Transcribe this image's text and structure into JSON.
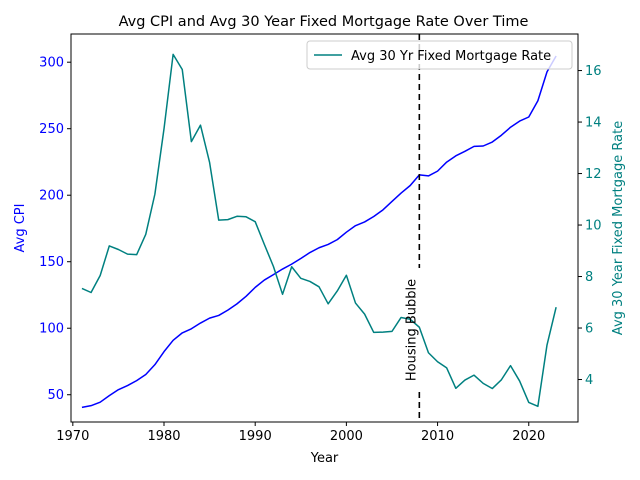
{
  "chart_data": {
    "type": "line",
    "title": "Avg CPI and Avg 30 Year Fixed Mortgage Rate Over Time",
    "xlabel": "Year",
    "ylabel_left": "Avg CPI",
    "ylabel_right": "Avg 30 Year Fixed Mortgage Rate",
    "xlim": [
      1969.8,
      2025.4
    ],
    "ylim_left": [
      29.5,
      321.2
    ],
    "ylim_right": [
      2.35,
      17.42
    ],
    "x_ticks": [
      1970,
      1980,
      1990,
      2000,
      2010,
      2020
    ],
    "y_ticks_left": [
      50,
      100,
      150,
      200,
      250,
      300
    ],
    "y_ticks_right": [
      4,
      6,
      8,
      10,
      12,
      14,
      16
    ],
    "grid": false,
    "legend": "top-right",
    "annotation": {
      "text": "Housing Bubble",
      "x": 2008
    },
    "colors": {
      "cpi": "#0000ff",
      "mortgage": "#008080",
      "annotation": "#000000"
    },
    "series": [
      {
        "axis": "left",
        "x": [
          1971,
          1972,
          1973,
          1974,
          1975,
          1976,
          1977,
          1978,
          1979,
          1980,
          1981,
          1982,
          1983,
          1984,
          1985,
          1986,
          1987,
          1988,
          1989,
          1990,
          1991,
          1992,
          1993,
          1994,
          1995,
          1996,
          1997,
          1998,
          1999,
          2000,
          2001,
          2002,
          2003,
          2004,
          2005,
          2006,
          2007,
          2008,
          2009,
          2010,
          2011,
          2012,
          2013,
          2014,
          2015,
          2016,
          2017,
          2018,
          2019,
          2020,
          2021,
          2022,
          2023
        ],
        "values": [
          40.5,
          41.8,
          44.4,
          49.3,
          53.8,
          56.9,
          60.6,
          65.2,
          72.6,
          82.4,
          90.9,
          96.5,
          99.6,
          103.9,
          107.6,
          109.6,
          113.6,
          118.3,
          124.0,
          130.7,
          136.2,
          140.3,
          144.5,
          148.2,
          152.4,
          156.9,
          160.5,
          163.0,
          166.6,
          172.2,
          177.1,
          179.9,
          184.0,
          188.9,
          195.3,
          201.6,
          207.3,
          215.3,
          214.5,
          218.1,
          224.9,
          229.6,
          233.0,
          236.7,
          237.0,
          240.0,
          245.1,
          251.1,
          255.7,
          258.8,
          271.0,
          292.7,
          304.7
        ]
      },
      {
        "name": "Avg 30 Yr Fixed Mortgage Rate",
        "axis": "right",
        "x": [
          1971,
          1972,
          1973,
          1974,
          1975,
          1976,
          1977,
          1978,
          1979,
          1980,
          1981,
          1982,
          1983,
          1984,
          1985,
          1986,
          1987,
          1988,
          1989,
          1990,
          1991,
          1992,
          1993,
          1994,
          1995,
          1996,
          1997,
          1998,
          1999,
          2000,
          2001,
          2002,
          2003,
          2004,
          2005,
          2006,
          2007,
          2008,
          2009,
          2010,
          2011,
          2012,
          2013,
          2014,
          2015,
          2016,
          2017,
          2018,
          2019,
          2020,
          2021,
          2022,
          2023
        ],
        "values": [
          7.54,
          7.38,
          8.04,
          9.19,
          9.05,
          8.87,
          8.85,
          9.64,
          11.2,
          13.74,
          16.63,
          16.04,
          13.24,
          13.88,
          12.43,
          10.19,
          10.21,
          10.34,
          10.32,
          10.13,
          9.25,
          8.39,
          7.31,
          8.38,
          7.93,
          7.81,
          7.6,
          6.94,
          7.44,
          8.05,
          6.97,
          6.54,
          5.83,
          5.84,
          5.87,
          6.41,
          6.34,
          6.03,
          5.04,
          4.69,
          4.45,
          3.66,
          3.98,
          4.17,
          3.85,
          3.65,
          3.99,
          4.54,
          3.94,
          3.11,
          2.96,
          5.34,
          6.81
        ]
      }
    ]
  }
}
